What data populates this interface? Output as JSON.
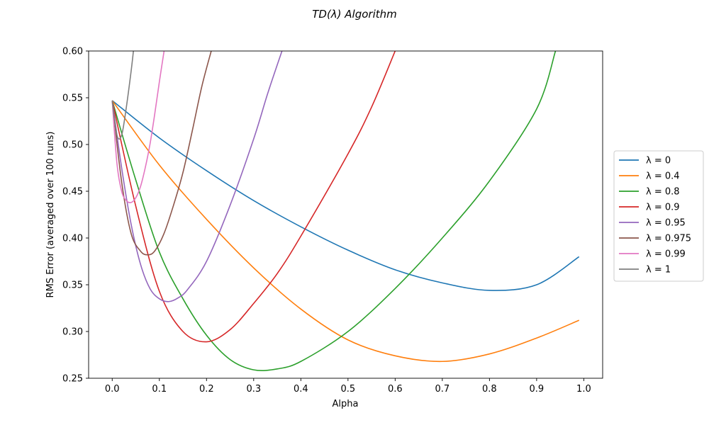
{
  "chart_data": {
    "type": "line",
    "title": "TD(λ) Algorithm",
    "xlabel": "Alpha",
    "ylabel": "RMS Error (averaged over 100 runs)",
    "xlim": [
      -0.05,
      1.04
    ],
    "ylim": [
      0.25,
      0.6
    ],
    "xticks": [
      0.0,
      0.1,
      0.2,
      0.3,
      0.4,
      0.5,
      0.6,
      0.7,
      0.8,
      0.9,
      1.0
    ],
    "xtick_labels": [
      "0.0",
      "0.1",
      "0.2",
      "0.3",
      "0.4",
      "0.5",
      "0.6",
      "0.7",
      "0.8",
      "0.9",
      "1.0"
    ],
    "yticks": [
      0.25,
      0.3,
      0.35,
      0.4,
      0.45,
      0.5,
      0.55,
      0.6
    ],
    "ytick_labels": [
      "0.25",
      "0.30",
      "0.35",
      "0.40",
      "0.45",
      "0.50",
      "0.55",
      "0.60"
    ],
    "grid": false,
    "legend_position": "right-outside",
    "series": [
      {
        "name": "λ = 0",
        "color": "#1f77b4",
        "x": [
          0.0,
          0.1,
          0.2,
          0.3,
          0.4,
          0.5,
          0.6,
          0.7,
          0.8,
          0.9,
          0.99
        ],
        "y": [
          0.547,
          0.507,
          0.472,
          0.44,
          0.412,
          0.387,
          0.366,
          0.352,
          0.344,
          0.35,
          0.38
        ]
      },
      {
        "name": "λ = 0.4",
        "color": "#ff7f0e",
        "x": [
          0.0,
          0.1,
          0.2,
          0.3,
          0.4,
          0.5,
          0.6,
          0.7,
          0.8,
          0.9,
          0.99
        ],
        "y": [
          0.547,
          0.478,
          0.42,
          0.368,
          0.324,
          0.291,
          0.274,
          0.268,
          0.276,
          0.293,
          0.312
        ]
      },
      {
        "name": "λ = 0.8",
        "color": "#2ca02c",
        "x": [
          0.0,
          0.05,
          0.1,
          0.15,
          0.2,
          0.25,
          0.3,
          0.35,
          0.4,
          0.5,
          0.6,
          0.7,
          0.8,
          0.9,
          0.94
        ],
        "y": [
          0.547,
          0.462,
          0.385,
          0.335,
          0.296,
          0.27,
          0.259,
          0.26,
          0.268,
          0.3,
          0.346,
          0.4,
          0.461,
          0.538,
          0.6
        ]
      },
      {
        "name": "λ = 0.9",
        "color": "#d62728",
        "x": [
          0.0,
          0.05,
          0.1,
          0.15,
          0.2,
          0.25,
          0.3,
          0.35,
          0.4,
          0.5,
          0.55,
          0.6
        ],
        "y": [
          0.547,
          0.434,
          0.343,
          0.3,
          0.289,
          0.302,
          0.33,
          0.362,
          0.402,
          0.49,
          0.54,
          0.6
        ]
      },
      {
        "name": "λ = 0.95",
        "color": "#9467bd",
        "x": [
          0.0,
          0.02,
          0.04,
          0.06,
          0.08,
          0.1,
          0.12,
          0.14,
          0.16,
          0.2,
          0.25,
          0.3,
          0.33,
          0.36
        ],
        "y": [
          0.547,
          0.475,
          0.415,
          0.372,
          0.346,
          0.335,
          0.332,
          0.336,
          0.345,
          0.375,
          0.435,
          0.506,
          0.555,
          0.6
        ]
      },
      {
        "name": "λ = 0.975",
        "color": "#8c564b",
        "x": [
          0.0,
          0.02,
          0.04,
          0.06,
          0.075,
          0.09,
          0.11,
          0.13,
          0.15,
          0.17,
          0.19,
          0.21
        ],
        "y": [
          0.547,
          0.46,
          0.405,
          0.386,
          0.382,
          0.386,
          0.405,
          0.435,
          0.47,
          0.515,
          0.562,
          0.6
        ]
      },
      {
        "name": "λ = 0.99",
        "color": "#e377c2",
        "x": [
          0.0,
          0.01,
          0.02,
          0.03,
          0.04,
          0.05,
          0.06,
          0.07,
          0.08,
          0.09,
          0.1,
          0.11
        ],
        "y": [
          0.547,
          0.48,
          0.45,
          0.44,
          0.438,
          0.443,
          0.455,
          0.475,
          0.5,
          0.532,
          0.567,
          0.6
        ]
      },
      {
        "name": "λ = 1",
        "color": "#7f7f7f",
        "x": [
          0.0,
          0.01,
          0.02,
          0.03,
          0.04,
          0.045
        ],
        "y": [
          0.547,
          0.51,
          0.51,
          0.54,
          0.578,
          0.6
        ]
      }
    ]
  }
}
